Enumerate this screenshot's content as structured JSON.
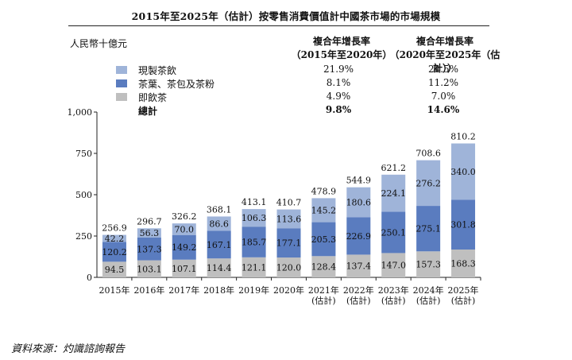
{
  "title": "2015年至2025年（估計）按零售消費價值計中國茶市場的市場規模",
  "unit_label": "人民幣十億元",
  "table_headers": {
    "cagr1": [
      "複合年增長率",
      "（2015年至2020年）"
    ],
    "cagr2": [
      "複合年增長率",
      "（2020年至2025年（估計））"
    ]
  },
  "legend": [
    {
      "label": "現製茶飲",
      "cagr1": "21.9%",
      "cagr2": "24.5%",
      "color": "#9fb4d9"
    },
    {
      "label": "茶葉、茶包及茶粉",
      "cagr1": "8.1%",
      "cagr2": "11.2%",
      "color": "#5a7cbf"
    },
    {
      "label": "即飲茶",
      "cagr1": "4.9%",
      "cagr2": "7.0%",
      "color": "#bfbfbf"
    },
    {
      "label": "總計",
      "cagr1": "9.8%",
      "cagr2": "14.6%",
      "color": ""
    }
  ],
  "chart_data": {
    "type": "bar",
    "stacked": true,
    "categories": [
      [
        "2015年"
      ],
      [
        "2016年"
      ],
      [
        "2017年"
      ],
      [
        "2018年"
      ],
      [
        "2019年"
      ],
      [
        "2020年"
      ],
      [
        "2021年",
        "(估計)"
      ],
      [
        "2022年",
        "(估計)"
      ],
      [
        "2023年",
        "(估計)"
      ],
      [
        "2024年",
        "(估計)"
      ],
      [
        "2025年",
        "(估計)"
      ]
    ],
    "series": [
      {
        "name": "即飲茶",
        "color": "#bfbfbf",
        "values": [
          94.5,
          103.1,
          107.1,
          114.4,
          121.1,
          120.0,
          128.4,
          137.4,
          147.0,
          157.3,
          168.3
        ]
      },
      {
        "name": "茶葉、茶包及茶粉",
        "color": "#5a7cbf",
        "values": [
          120.2,
          137.3,
          149.2,
          167.1,
          185.7,
          177.1,
          205.3,
          226.9,
          250.1,
          275.1,
          301.8
        ]
      },
      {
        "name": "現製茶飲",
        "color": "#9fb4d9",
        "values": [
          42.2,
          56.3,
          70.0,
          86.6,
          106.3,
          113.6,
          145.2,
          180.6,
          224.1,
          276.2,
          340.0
        ]
      }
    ],
    "totals": [
      256.9,
      296.7,
      326.2,
      368.1,
      413.1,
      410.7,
      478.9,
      544.9,
      621.2,
      708.6,
      810.2
    ],
    "ylim": [
      0,
      1000
    ],
    "yticks": [
      0,
      250,
      500,
      750,
      1000
    ],
    "ytick_labels": [
      "0",
      "250",
      "500",
      "750",
      "1,000"
    ]
  },
  "source": "資料來源：灼識諮詢報告"
}
